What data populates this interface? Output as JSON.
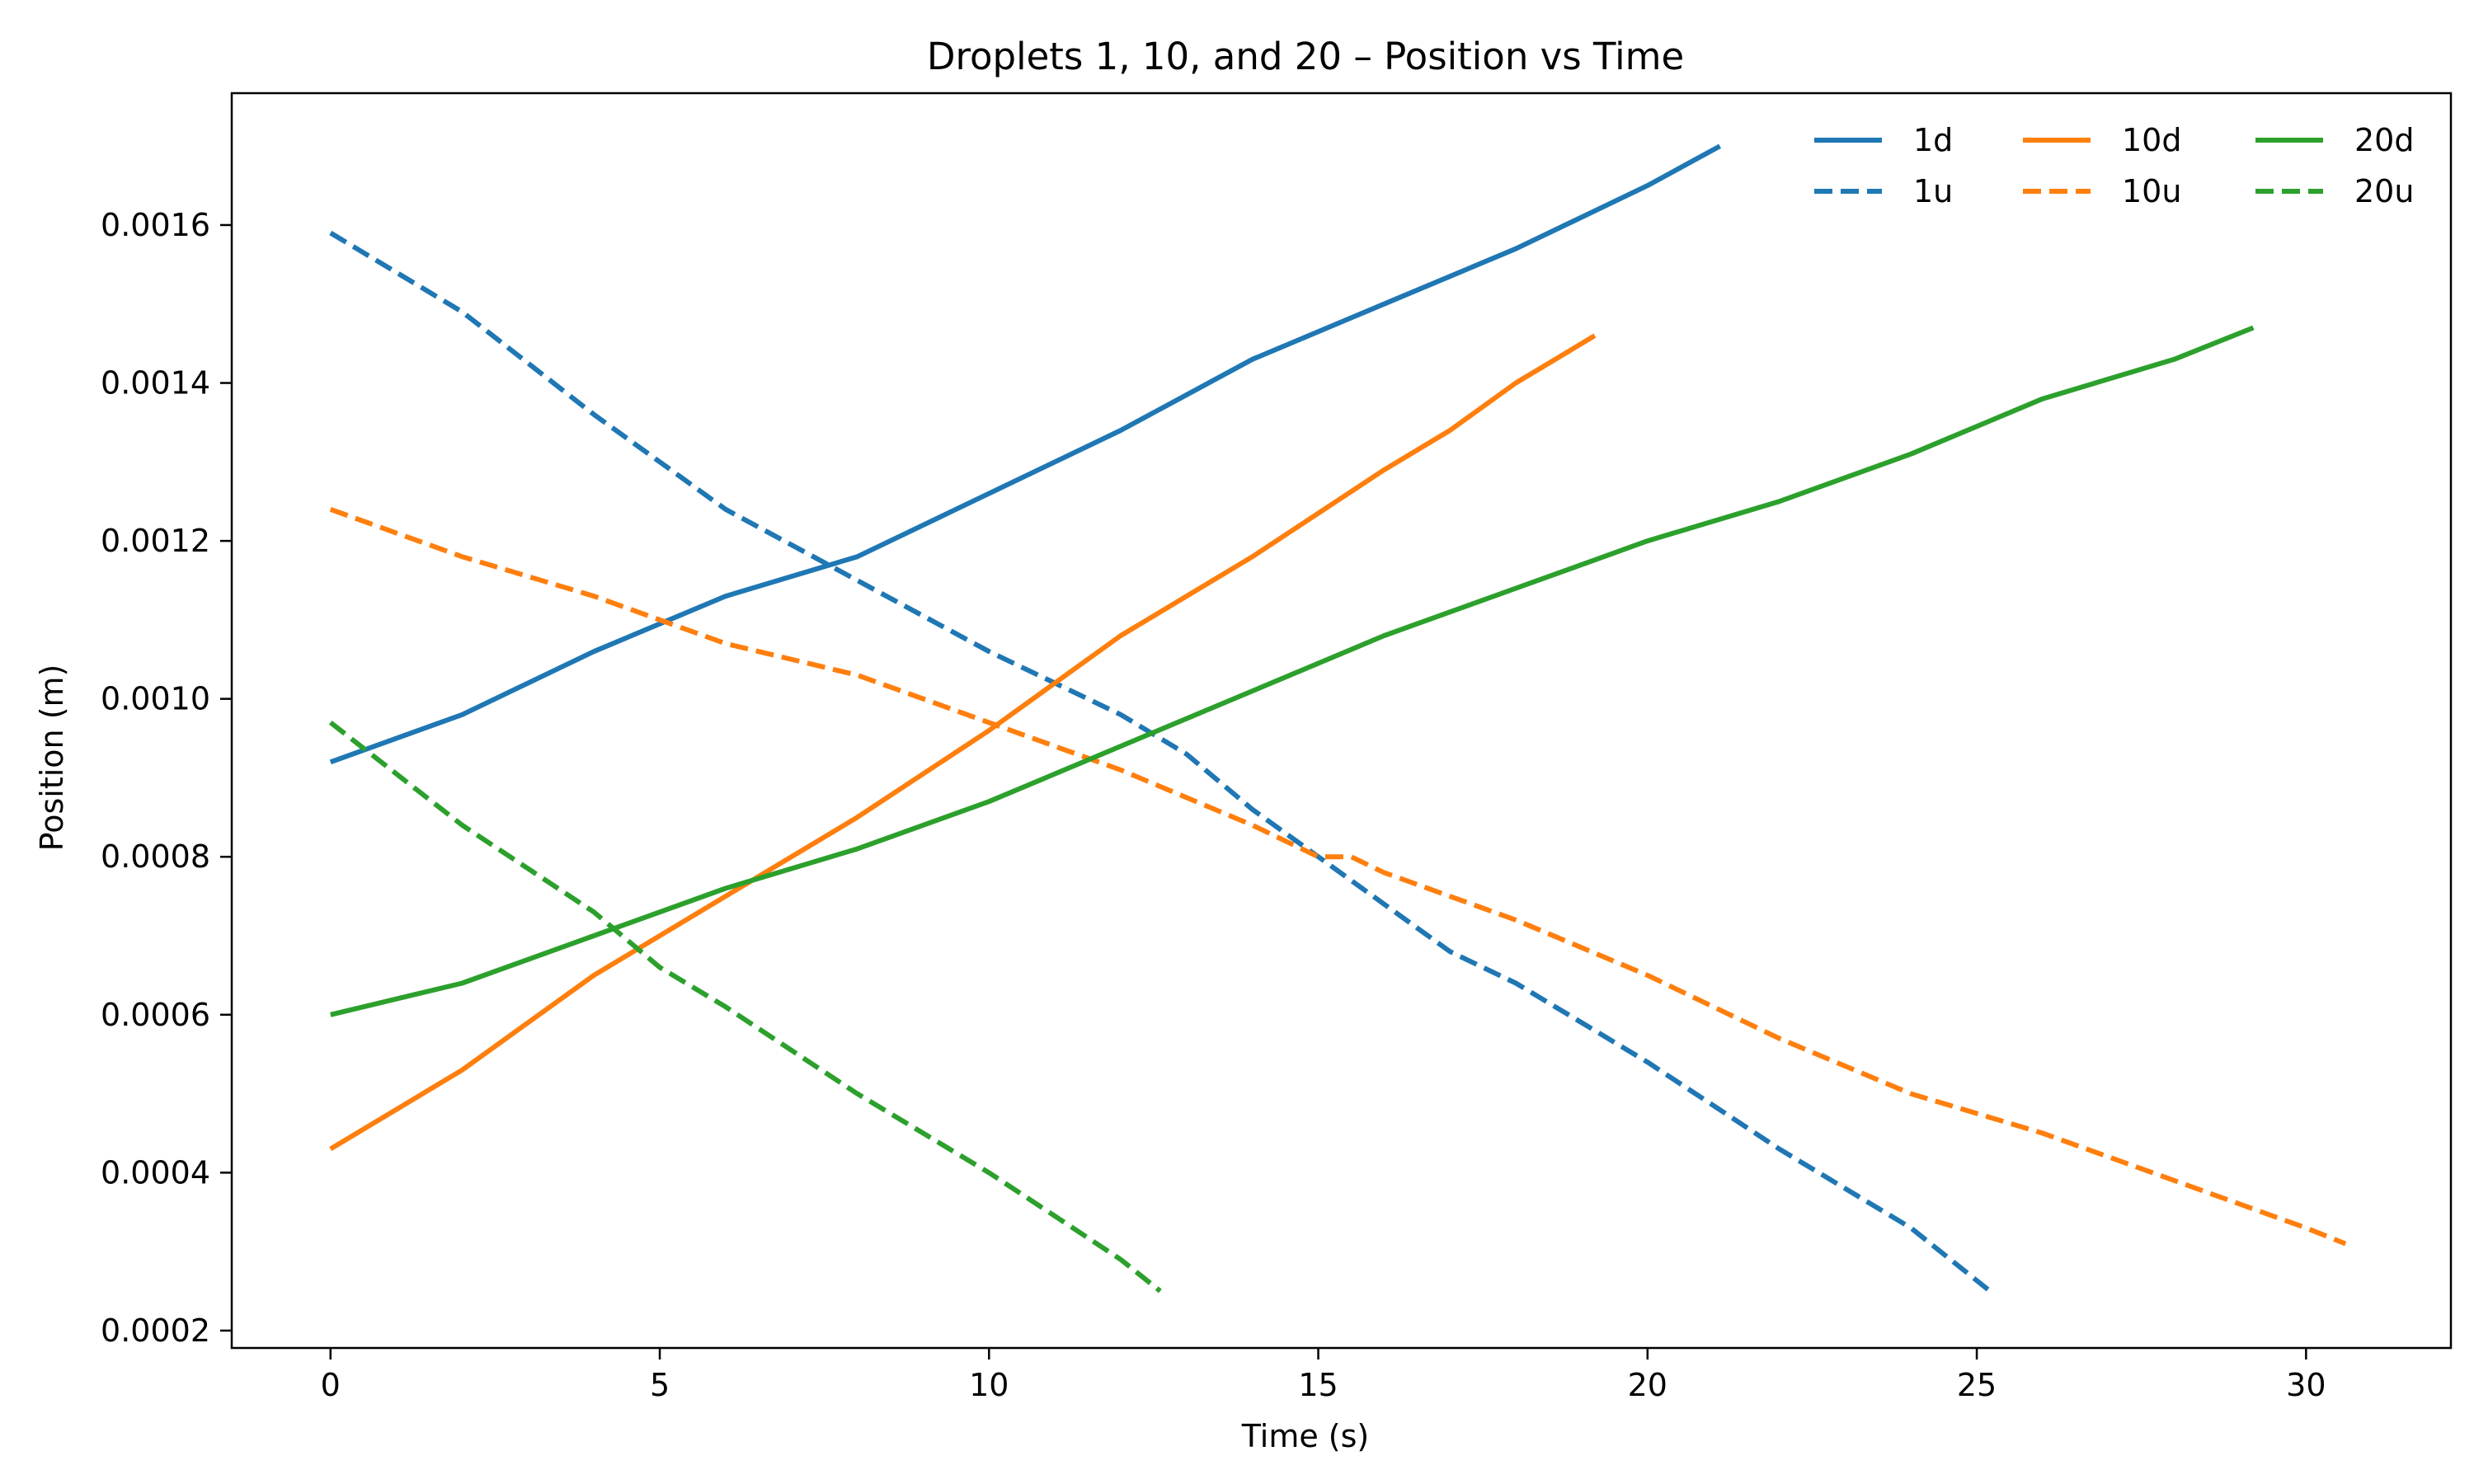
{
  "chart_data": {
    "type": "line",
    "title": "Droplets 1, 10, and 20 – Position vs Time",
    "xlabel": "Time (s)",
    "ylabel": "Position (m)",
    "xlim": [
      -1.5,
      32.2
    ],
    "ylim": [
      0.000178,
      0.001767
    ],
    "xticks": [
      0,
      5,
      10,
      15,
      20,
      25,
      30
    ],
    "yticks": [
      0.0002,
      0.0004,
      0.0006,
      0.0008,
      0.001,
      0.0012,
      0.0014,
      0.0016
    ],
    "xtick_labels": [
      "0",
      "5",
      "10",
      "15",
      "20",
      "25",
      "30"
    ],
    "ytick_labels": [
      "0.0002",
      "0.0004",
      "0.0006",
      "0.0008",
      "0.0010",
      "0.0012",
      "0.0014",
      "0.0016"
    ],
    "grid": false,
    "legend_placement": "top-right",
    "legend_columns": 3,
    "series": [
      {
        "name": "1d",
        "color": "#1f77b4",
        "dash": "solid",
        "x": [
          0,
          2,
          4,
          6,
          8,
          10,
          12,
          14,
          16,
          18,
          20,
          21.1
        ],
        "y": [
          0.00092,
          0.00098,
          0.00106,
          0.00113,
          0.00118,
          0.00126,
          0.00134,
          0.00143,
          0.0015,
          0.00157,
          0.00165,
          0.0017
        ]
      },
      {
        "name": "1u",
        "color": "#1f77b4",
        "dash": "dashed",
        "x": [
          0,
          2,
          4,
          6,
          8,
          10,
          12,
          13,
          14,
          15,
          16,
          17,
          18,
          20,
          22,
          24,
          25.2
        ],
        "y": [
          0.00159,
          0.00149,
          0.00136,
          0.00124,
          0.00115,
          0.00106,
          0.00098,
          0.00093,
          0.00086,
          0.0008,
          0.00074,
          0.00068,
          0.00064,
          0.00054,
          0.00043,
          0.00033,
          0.00025
        ]
      },
      {
        "name": "10d",
        "color": "#ff7f0e",
        "dash": "solid",
        "x": [
          0,
          2,
          4,
          6,
          8,
          10,
          12,
          14,
          16,
          17,
          18,
          19.2
        ],
        "y": [
          0.00043,
          0.00053,
          0.00065,
          0.00075,
          0.00085,
          0.00096,
          0.00108,
          0.00118,
          0.00129,
          0.00134,
          0.0014,
          0.00146
        ]
      },
      {
        "name": "10u",
        "color": "#ff7f0e",
        "dash": "dashed",
        "x": [
          0,
          2,
          4,
          6,
          8,
          10,
          12,
          14,
          15,
          15.5,
          16,
          18,
          20,
          22,
          24,
          26,
          28,
          30,
          30.6
        ],
        "y": [
          0.00124,
          0.00118,
          0.00113,
          0.00107,
          0.00103,
          0.00097,
          0.00091,
          0.00084,
          0.0008,
          0.0008,
          0.00078,
          0.00072,
          0.00065,
          0.00057,
          0.0005,
          0.00045,
          0.00039,
          0.00033,
          0.00031
        ]
      },
      {
        "name": "20d",
        "color": "#2ca02c",
        "dash": "solid",
        "x": [
          0,
          2,
          4,
          6,
          8,
          10,
          12,
          14,
          16,
          18,
          20,
          22,
          24,
          26,
          28,
          29.2
        ],
        "y": [
          0.0006,
          0.00064,
          0.0007,
          0.00076,
          0.00081,
          0.00087,
          0.00094,
          0.00101,
          0.00108,
          0.00114,
          0.0012,
          0.00125,
          0.00131,
          0.00138,
          0.00143,
          0.00147
        ]
      },
      {
        "name": "20u",
        "color": "#2ca02c",
        "dash": "dashed",
        "x": [
          0,
          2,
          4,
          5,
          6,
          8,
          10,
          12,
          12.6
        ],
        "y": [
          0.00097,
          0.00084,
          0.00073,
          0.00066,
          0.00061,
          0.0005,
          0.0004,
          0.00029,
          0.00025
        ]
      }
    ]
  }
}
